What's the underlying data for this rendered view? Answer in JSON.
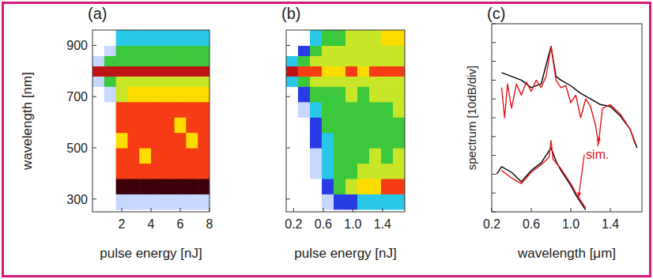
{
  "chart_data": [
    {
      "type": "heatmap",
      "title": "(a)",
      "x_label": "pulse energy [nJ]",
      "y_label": "wavelength [nm]",
      "xlim": [
        0,
        8
      ],
      "xticks": [
        2,
        4,
        6,
        8
      ],
      "ylim": [
        250,
        960
      ],
      "yticks": [
        300,
        500,
        700,
        900
      ],
      "x_edges": [
        0,
        0.8,
        1.6,
        2.4,
        3.2,
        4,
        4.8,
        5.6,
        6.4,
        7.2,
        8
      ],
      "y_edges": [
        260,
        320,
        380,
        440,
        500,
        560,
        620,
        680,
        740,
        780,
        820,
        860,
        900,
        960
      ],
      "color_range": [
        0,
        10
      ],
      "cells": [
        [
          0,
          0,
          1,
          1,
          1,
          1,
          1,
          1,
          1,
          1
        ],
        [
          0,
          0,
          9,
          9,
          9,
          9,
          9,
          9,
          9,
          9
        ],
        [
          0,
          0,
          7,
          7,
          7,
          7,
          7,
          7,
          7,
          7
        ],
        [
          0,
          0,
          7,
          7,
          6,
          7,
          7,
          7,
          7,
          7
        ],
        [
          0,
          0,
          6,
          7,
          7,
          7,
          7,
          7,
          6,
          7
        ],
        [
          0,
          0,
          7,
          7,
          7,
          7,
          7,
          6,
          7,
          7
        ],
        [
          0,
          0,
          7,
          7,
          7,
          7,
          7,
          7,
          7,
          7
        ],
        [
          0,
          1,
          5,
          6,
          6,
          6,
          6,
          6,
          6,
          6
        ],
        [
          1,
          4,
          5,
          5,
          5,
          5,
          5,
          5,
          5,
          5
        ],
        [
          8,
          8,
          8,
          8,
          8,
          8,
          8,
          8,
          8,
          8
        ],
        [
          1,
          4,
          4,
          4,
          4,
          4,
          4,
          4,
          4,
          4
        ],
        [
          0,
          1,
          4,
          4,
          4,
          4,
          4,
          4,
          4,
          4
        ],
        [
          0,
          0,
          3,
          3,
          3,
          3,
          3,
          3,
          3,
          3
        ]
      ]
    },
    {
      "type": "heatmap",
      "title": "(b)",
      "x_label": "pulse energy [nJ]",
      "xlim": [
        0.1,
        1.7
      ],
      "xticks": [
        0.2,
        0.6,
        {
          "value": 1,
          "label": "1.0"
        },
        1.4
      ],
      "ylim": [
        250,
        960
      ],
      "yticks": [
        300,
        500,
        700,
        900
      ],
      "tick_labels": "x",
      "x_edges": [
        0.1,
        0.26,
        0.42,
        0.58,
        0.74,
        0.9,
        1.06,
        1.22,
        1.38,
        1.54,
        1.7
      ],
      "y_edges": [
        260,
        320,
        380,
        440,
        500,
        560,
        620,
        680,
        740,
        780,
        820,
        860,
        900,
        960
      ],
      "color_range": [
        0,
        10
      ],
      "cells": [
        [
          0,
          0,
          0,
          1,
          2,
          2,
          3,
          3,
          3,
          3
        ],
        [
          0,
          0,
          0,
          2,
          4,
          5,
          6,
          6,
          7,
          7
        ],
        [
          0,
          0,
          1,
          3,
          4,
          4,
          5,
          5,
          5,
          5
        ],
        [
          0,
          0,
          1,
          3,
          4,
          4,
          4,
          5,
          4,
          5
        ],
        [
          0,
          0,
          2,
          3,
          4,
          4,
          4,
          4,
          4,
          4
        ],
        [
          0,
          0,
          2,
          4,
          4,
          4,
          4,
          4,
          4,
          4
        ],
        [
          0,
          1,
          3,
          4,
          4,
          4,
          4,
          4,
          4,
          5
        ],
        [
          0,
          2,
          4,
          4,
          4,
          5,
          4,
          5,
          5,
          5
        ],
        [
          3,
          4,
          5,
          5,
          5,
          5,
          5,
          5,
          5,
          5
        ],
        [
          8,
          7,
          7,
          6,
          6,
          7,
          6,
          7,
          7,
          7
        ],
        [
          3,
          4,
          5,
          5,
          5,
          5,
          5,
          5,
          5,
          5
        ],
        [
          0,
          2,
          4,
          5,
          5,
          5,
          5,
          5,
          5,
          5
        ],
        [
          0,
          0,
          3,
          4,
          4,
          5,
          5,
          5,
          6,
          6
        ]
      ]
    },
    {
      "type": "line",
      "title": "(c)",
      "x_label": "wavelength [μm]",
      "y_label": "spectrum [10dB/div]",
      "xlim": [
        0.2,
        1.72
      ],
      "xticks": [
        0.2,
        0.6,
        {
          "value": 1,
          "label": "1.0"
        },
        1.4
      ],
      "ylim": [
        0,
        100
      ],
      "yticks": [
        0,
        10,
        20,
        30,
        40,
        50,
        60,
        70,
        80,
        90,
        100
      ],
      "tick_labels": "x",
      "series": [
        {
          "color": "#000000",
          "x": [
            0.3,
            0.4,
            0.5,
            0.6,
            0.7,
            0.8,
            0.85,
            0.9,
            1.0,
            1.1,
            1.2,
            1.3,
            1.4,
            1.5,
            1.6,
            1.67
          ],
          "values": [
            74,
            72,
            70,
            66,
            68,
            88,
            72,
            70,
            67,
            63,
            60,
            57,
            56,
            51,
            44,
            34
          ]
        },
        {
          "color": "#e0161b",
          "x": [
            0.3,
            0.33,
            0.36,
            0.4,
            0.45,
            0.5,
            0.55,
            0.6,
            0.65,
            0.7,
            0.75,
            0.8,
            0.85,
            0.9,
            0.95,
            1.0,
            1.05,
            1.1,
            1.15,
            1.2,
            1.25,
            1.28,
            1.32,
            1.4,
            1.5,
            1.6,
            1.65
          ],
          "values": [
            66,
            50,
            68,
            55,
            68,
            62,
            69,
            64,
            70,
            66,
            72,
            88,
            70,
            66,
            67,
            58,
            62,
            50,
            60,
            56,
            46,
            36,
            55,
            57,
            52,
            44,
            36
          ]
        },
        {
          "color": "#000000",
          "x": [
            0.25,
            0.3,
            0.4,
            0.5,
            0.55,
            0.6,
            0.7,
            0.8,
            0.85,
            0.9,
            1.0,
            1.05,
            1.1,
            1.15
          ],
          "values": [
            20,
            24,
            21,
            16,
            19,
            22,
            26,
            34,
            27,
            22,
            14,
            9,
            5,
            1
          ]
        },
        {
          "color": "#e0161b",
          "x": [
            0.3,
            0.4,
            0.5,
            0.6,
            0.7,
            0.78,
            0.8,
            0.82,
            0.9,
            1.0,
            1.05,
            1.1,
            1.15
          ],
          "values": [
            22,
            18,
            15,
            21,
            25,
            29,
            38,
            28,
            23,
            15,
            10,
            6,
            2
          ]
        }
      ],
      "annotations": [
        {
          "text": "sim.",
          "x": 1.27,
          "y": 28,
          "color": "#e0161b",
          "arrows": [
            [
              1.29,
              40
            ],
            [
              1.08,
              8
            ]
          ]
        }
      ]
    }
  ]
}
